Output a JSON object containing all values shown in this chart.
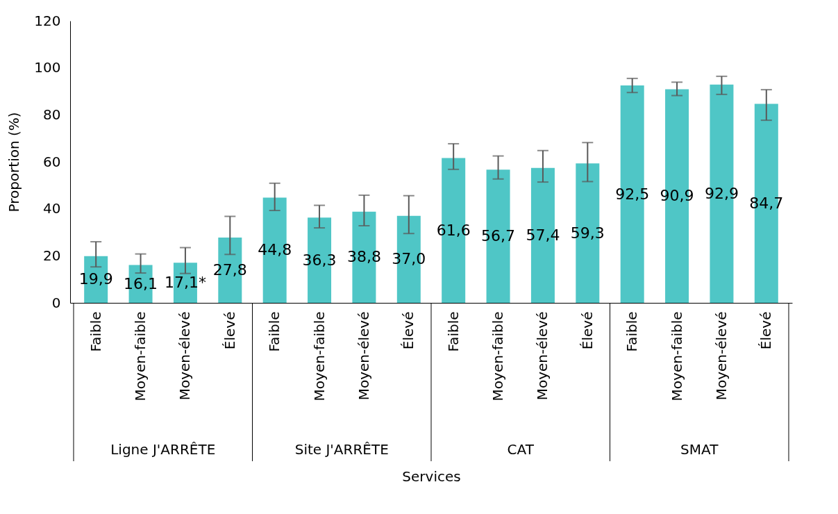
{
  "chart_data": {
    "type": "bar",
    "xlabel": "Services",
    "ylabel": "Proportion (%)",
    "categories": [
      "Faible",
      "Moyen-faible",
      "Moyen-élevé",
      "Élevé",
      "Faible",
      "Moyen-faible",
      "Moyen-élevé",
      "Élevé",
      "Faible",
      "Moyen-faible",
      "Moyen-élevé",
      "Élevé",
      "Faible",
      "Moyen-faible",
      "Moyen-élevé",
      "Élevé"
    ],
    "annotations": [
      "Ligne J'ARRÊTE",
      "Site J'ARRÊTE",
      "CAT",
      "SMAT"
    ],
    "series": [
      {
        "color": "#4fc6c6",
        "values": [
          19.9,
          16.1,
          17.1,
          27.8,
          44.8,
          36.3,
          38.8,
          37.0,
          61.6,
          56.7,
          57.4,
          59.3,
          92.5,
          90.9,
          92.9,
          84.7
        ],
        "value_labels": [
          "19,9",
          "16,1",
          "17,1*",
          "27,8",
          "44,8",
          "36,3",
          "38,8",
          "37,0",
          "61,6",
          "56,7",
          "57,4",
          "59,3",
          "92,5",
          "90,9",
          "92,9",
          "84,7"
        ],
        "errors": [
          [
            15.3,
            26.0
          ],
          [
            12.7,
            20.8
          ],
          [
            12.5,
            23.5
          ],
          [
            20.6,
            36.8
          ],
          [
            39.3,
            50.9
          ],
          [
            31.9,
            41.5
          ],
          [
            32.8,
            45.8
          ],
          [
            29.5,
            45.6
          ],
          [
            56.8,
            67.7
          ],
          [
            52.7,
            62.5
          ],
          [
            51.4,
            64.8
          ],
          [
            51.6,
            68.2
          ],
          [
            89.5,
            95.5
          ],
          [
            88.2,
            93.9
          ],
          [
            88.7,
            96.4
          ],
          [
            77.7,
            90.7
          ]
        ]
      }
    ],
    "ylim": [
      0,
      120
    ],
    "yticks": [
      0,
      20,
      40,
      60,
      80,
      100,
      120
    ],
    "grid": false
  }
}
